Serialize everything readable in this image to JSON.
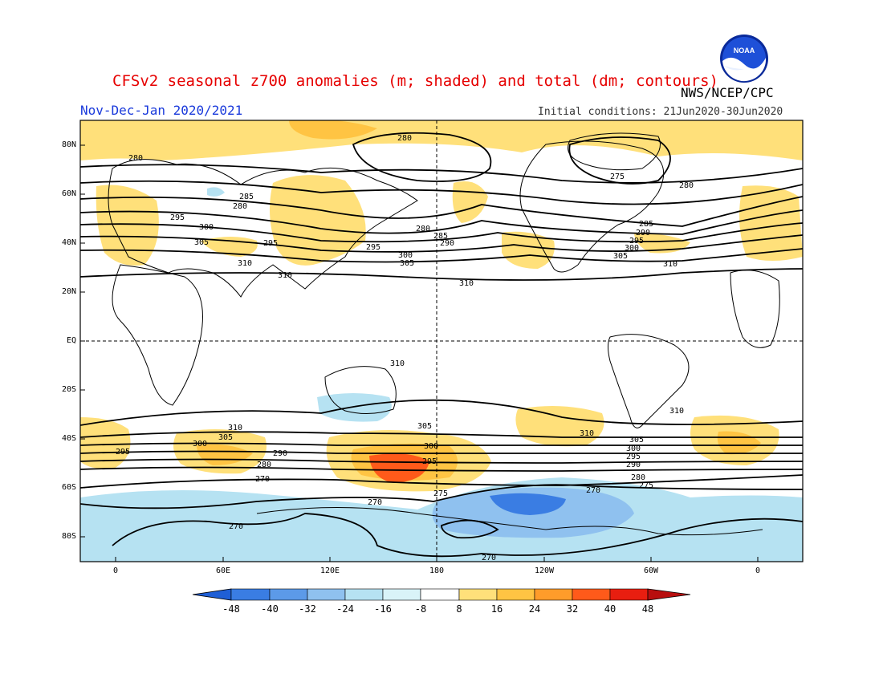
{
  "header": {
    "title": "CFSv2 seasonal z700 anomalies (m; shaded) and total (dm; contours)",
    "subtitle": "Nov-Dec-Jan 2020/2021",
    "agency": "NWS/NCEP/CPC",
    "initial_conditions": "Initial conditions: 21Jun2020-30Jun2020",
    "logo_text": "NOAA"
  },
  "map": {
    "projection": "cylindrical equidistant",
    "lat_labels": [
      "80N",
      "60N",
      "40N",
      "20N",
      "EQ",
      "20S",
      "40S",
      "60S",
      "80S"
    ],
    "lon_labels": [
      "0",
      "60E",
      "120E",
      "180",
      "120W",
      "60W",
      "0"
    ],
    "contour_labels": [
      "280",
      "280",
      "285",
      "280",
      "295",
      "300",
      "305",
      "310",
      "310",
      "280",
      "285",
      "290",
      "295",
      "300",
      "305",
      "310",
      "275",
      "280",
      "285",
      "290",
      "295",
      "300",
      "305",
      "310",
      "310",
      "310",
      "305",
      "300",
      "295",
      "280",
      "270",
      "275",
      "270",
      "270",
      "270",
      "310",
      "305",
      "300",
      "295",
      "290",
      "280",
      "275",
      "270",
      "295",
      "300",
      "305",
      "310",
      "290",
      "295"
    ],
    "colors": {
      "neg48": "#1f5fd6",
      "neg40": "#3a7de3",
      "neg32": "#5c9ae8",
      "neg24": "#8fc1ef",
      "neg16": "#b6e2f2",
      "neutral": "#ffffff",
      "pos8": "#ffe07a",
      "pos16": "#ffc443",
      "pos24": "#ff9c2a",
      "pos32": "#ff5a1a",
      "pos40": "#e81e10",
      "pos48": "#b80f0f"
    }
  },
  "colorbar": {
    "ticks": [
      "-48",
      "-40",
      "-32",
      "-24",
      "-16",
      "-8",
      "8",
      "16",
      "24",
      "32",
      "40",
      "48"
    ]
  }
}
